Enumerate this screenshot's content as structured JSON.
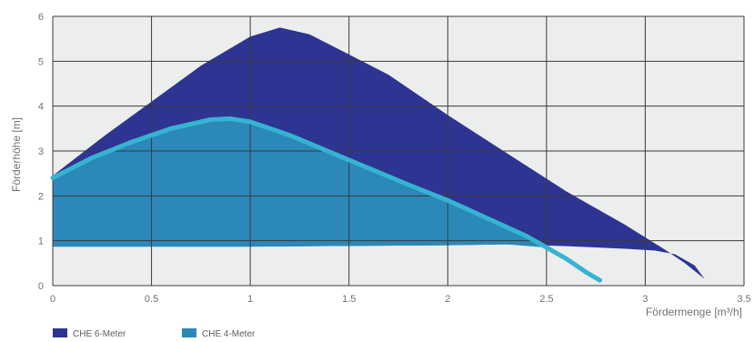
{
  "chart_data": {
    "type": "area",
    "title": "",
    "xlabel": "Fördermenge [m³/h]",
    "ylabel": "Förderhöhe [m]",
    "xlim": [
      0,
      3.5
    ],
    "ylim": [
      0,
      6
    ],
    "x_ticks": [
      "0",
      "0.5",
      "1",
      "1.5",
      "2",
      "2.5",
      "3",
      "3.5"
    ],
    "y_ticks": [
      "0",
      "1",
      "2",
      "3",
      "4",
      "5",
      "6"
    ],
    "grid": true,
    "legend_position": "bottom-left",
    "series": [
      {
        "name": "CHE 6-Meter",
        "color": "#2e3492",
        "upper": [
          [
            0,
            2.45
          ],
          [
            0.25,
            3.3
          ],
          [
            0.5,
            4.1
          ],
          [
            0.75,
            4.9
          ],
          [
            1.0,
            5.55
          ],
          [
            1.15,
            5.75
          ],
          [
            1.3,
            5.6
          ],
          [
            1.5,
            5.15
          ],
          [
            1.7,
            4.7
          ],
          [
            2.0,
            3.8
          ],
          [
            2.3,
            2.95
          ],
          [
            2.6,
            2.1
          ],
          [
            2.9,
            1.35
          ],
          [
            3.1,
            0.8
          ],
          [
            3.2,
            0.5
          ],
          [
            3.3,
            0.15
          ]
        ],
        "lower": [
          [
            0,
            0.87
          ],
          [
            1.0,
            0.87
          ],
          [
            2.0,
            0.9
          ],
          [
            2.3,
            0.92
          ],
          [
            2.6,
            0.88
          ],
          [
            2.9,
            0.82
          ],
          [
            3.05,
            0.78
          ],
          [
            3.15,
            0.7
          ],
          [
            3.25,
            0.45
          ],
          [
            3.3,
            0.15
          ]
        ]
      },
      {
        "name": "CHE 4-Meter",
        "color": "#2b88b8",
        "line_color": "#35b4d2",
        "upper": [
          [
            0,
            2.4
          ],
          [
            0.2,
            2.85
          ],
          [
            0.4,
            3.2
          ],
          [
            0.6,
            3.5
          ],
          [
            0.8,
            3.7
          ],
          [
            0.9,
            3.72
          ],
          [
            1.0,
            3.65
          ],
          [
            1.2,
            3.35
          ],
          [
            1.5,
            2.8
          ],
          [
            1.8,
            2.25
          ],
          [
            2.0,
            1.9
          ],
          [
            2.2,
            1.5
          ],
          [
            2.4,
            1.1
          ],
          [
            2.6,
            0.6
          ],
          [
            2.7,
            0.3
          ],
          [
            2.77,
            0.12
          ]
        ],
        "lower": [
          [
            0,
            0.87
          ],
          [
            1.0,
            0.87
          ],
          [
            2.0,
            0.9
          ],
          [
            2.3,
            0.92
          ],
          [
            2.5,
            0.85
          ]
        ]
      }
    ]
  }
}
